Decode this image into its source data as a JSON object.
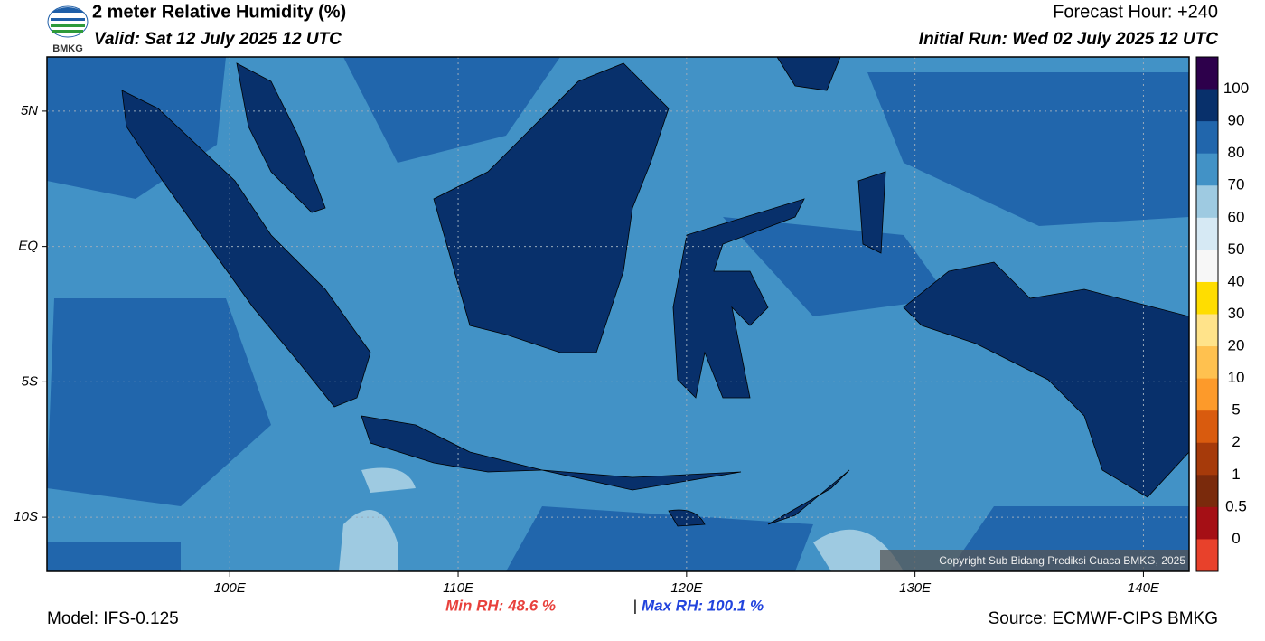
{
  "header": {
    "title": "2 meter Relative Humidity (%)",
    "valid": "Valid: Sat 12 July 2025 12 UTC",
    "forecast_hour": "Forecast Hour: +240",
    "initial_run": "Initial Run: Wed 02 July 2025 12 UTC",
    "logo": "BMKG"
  },
  "map": {
    "lonlim": [
      92,
      142
    ],
    "latlim": [
      -12,
      7
    ],
    "xticks": [
      {
        "value": 100,
        "label": "100E"
      },
      {
        "value": 110,
        "label": "110E"
      },
      {
        "value": 120,
        "label": "120E"
      },
      {
        "value": 130,
        "label": "130E"
      },
      {
        "value": 140,
        "label": "140E"
      }
    ],
    "yticks": [
      {
        "value": 5,
        "label": "5N"
      },
      {
        "value": 0,
        "label": "EQ"
      },
      {
        "value": -5,
        "label": "5S"
      },
      {
        "value": -10,
        "label": "10S"
      }
    ],
    "copyright": "Copyright Sub Bidang Prediksi Cuaca BMKG, 2025"
  },
  "colorbar": {
    "levels": [
      100,
      90,
      80,
      70,
      60,
      50,
      40,
      30,
      20,
      10,
      5,
      2,
      1,
      0.5,
      0
    ],
    "colors": [
      "#2d004b",
      "#08306b",
      "#2166ac",
      "#4292c6",
      "#9ecae1",
      "#d6e9f4",
      "#f7f7f7",
      "#ffdd00",
      "#ffe38a",
      "#ffc14f",
      "#fd9a2a",
      "#d95b0e",
      "#a63a0a",
      "#7a2a0c",
      "#a50f15",
      "#e8412b"
    ]
  },
  "footer": {
    "min_rh": "Min RH:  48.6 %",
    "separator": "|",
    "max_rh": "Max RH: 100.1 %",
    "model": "Model: IFS-0.125",
    "source": "Source: ECMWF-CIPS BMKG"
  }
}
